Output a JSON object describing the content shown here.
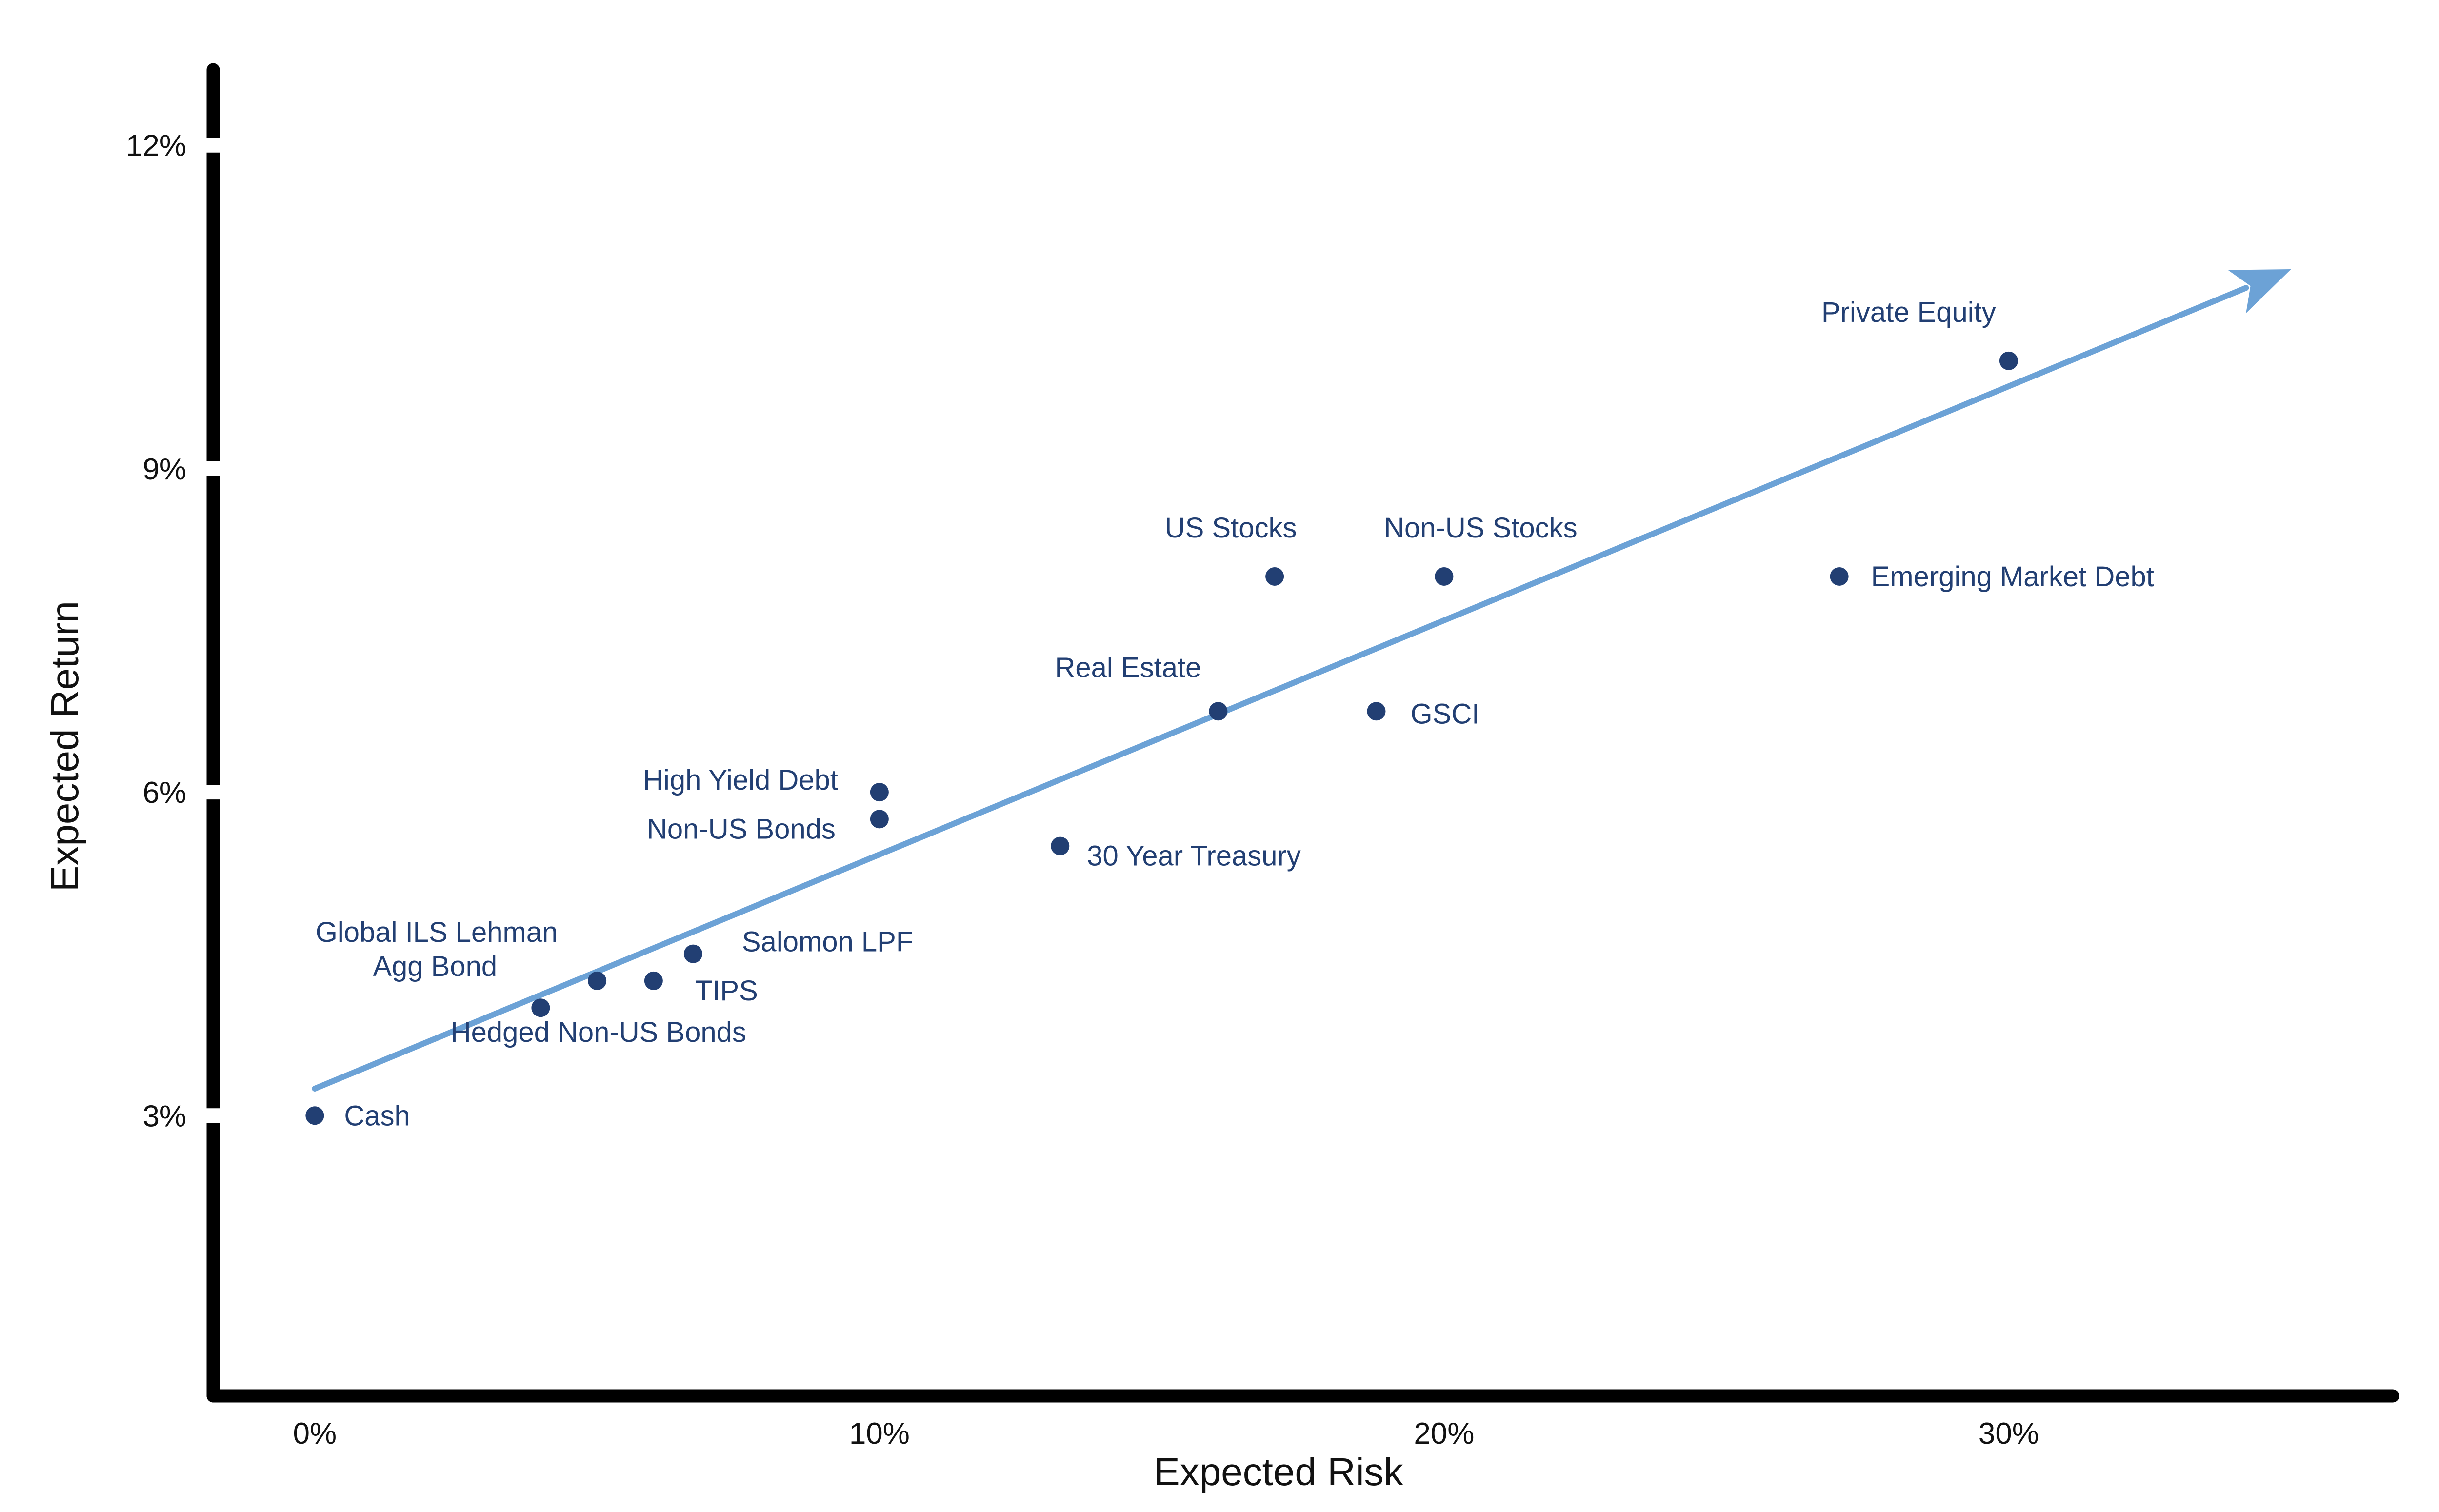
{
  "chart_data": {
    "type": "scatter",
    "title": "",
    "xlabel": "Expected Risk",
    "ylabel": "Expected Return",
    "xlim": [
      -1.8,
      36.8
    ],
    "ylim": [
      0.4,
      12.7
    ],
    "x_ticks": [
      {
        "value": 0,
        "label": "0%"
      },
      {
        "value": 10,
        "label": "10%"
      },
      {
        "value": 20,
        "label": "20%"
      },
      {
        "value": 30,
        "label": "30%"
      }
    ],
    "y_ticks": [
      {
        "value": 3,
        "label": "3%"
      },
      {
        "value": 6,
        "label": "6%"
      },
      {
        "value": 9,
        "label": "9%"
      },
      {
        "value": 12,
        "label": "12%"
      }
    ],
    "grid": false,
    "legend": "none",
    "point_color": "#223f73",
    "trend_color": "#6ca2d6",
    "axis_color": "#000000",
    "trend_line": {
      "x": [
        0,
        35
      ],
      "y": [
        3.25,
        10.85
      ],
      "arrow": true
    },
    "points": [
      {
        "label": "Cash",
        "x": 0,
        "y": 3.0
      },
      {
        "label": "Global ILS Lehman",
        "x": 4.0,
        "y": 4.0
      },
      {
        "label": "Agg Bond",
        "x": 5.0,
        "y": 4.25
      },
      {
        "label": "Hedged Non-US Bonds",
        "x": 6.0,
        "y": 4.25
      },
      {
        "label": "TIPS",
        "x": 6.0,
        "y": 4.25
      },
      {
        "label": "Salomon LPF",
        "x": 6.7,
        "y": 4.5
      },
      {
        "label": "High Yield Debt",
        "x": 10.0,
        "y": 6.0
      },
      {
        "label": "Non-US Bonds",
        "x": 10.0,
        "y": 5.75
      },
      {
        "label": "30 Year Treasury",
        "x": 13.2,
        "y": 5.5
      },
      {
        "label": "Real Estate",
        "x": 16.0,
        "y": 6.75
      },
      {
        "label": "GSCI",
        "x": 18.8,
        "y": 6.75
      },
      {
        "label": "US Stocks",
        "x": 17.0,
        "y": 8.0
      },
      {
        "label": "Non-US Stocks",
        "x": 20.0,
        "y": 8.0
      },
      {
        "label": "Emerging Market Debt",
        "x": 27.0,
        "y": 8.0
      },
      {
        "label": "Private Equity",
        "x": 30.0,
        "y": 10.0
      }
    ]
  }
}
